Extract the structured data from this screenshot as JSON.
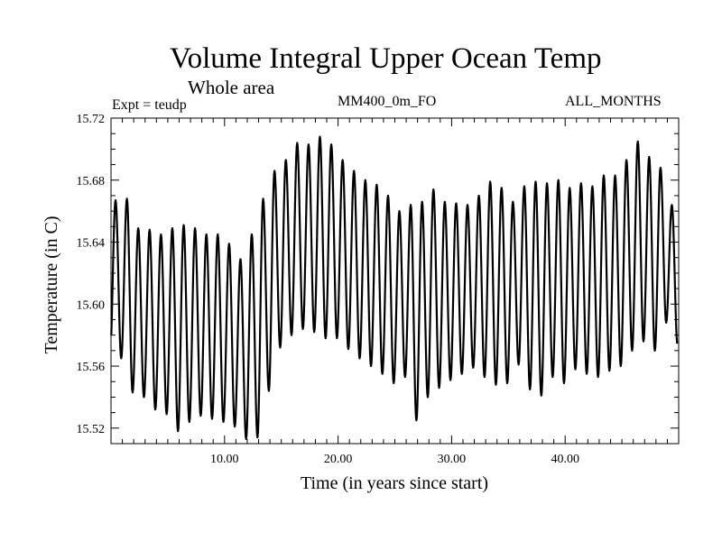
{
  "chart_data": {
    "type": "line",
    "title": "Volume Integral Upper Ocean Temp",
    "subtitle": "Whole area",
    "left_label": "Expt = teudp",
    "center_label": "MM400_0m_FO",
    "right_label": "ALL_MONTHS",
    "xlabel": "Time (in years since start)",
    "ylabel": "Temperature (in C)",
    "xlim": [
      0,
      50
    ],
    "ylim": [
      15.51,
      15.72
    ],
    "x_ticks": [
      10,
      20,
      30,
      40
    ],
    "x_tick_labels": [
      "10.00",
      "20.00",
      "30.00",
      "40.00"
    ],
    "y_ticks": [
      15.52,
      15.56,
      15.6,
      15.64,
      15.68,
      15.72
    ],
    "y_tick_labels": [
      "15.52",
      "15.56",
      "15.60",
      "15.64",
      "15.68",
      "15.72"
    ],
    "grid": false,
    "series_note": "annual cycle",
    "yearly_max": [
      15.667,
      15.668,
      15.649,
      15.648,
      15.645,
      15.649,
      15.651,
      15.649,
      15.645,
      15.645,
      15.639,
      15.629,
      15.645,
      15.668,
      15.686,
      15.693,
      15.704,
      15.703,
      15.708,
      15.703,
      15.693,
      15.686,
      15.68,
      15.677,
      15.67,
      15.66,
      15.664,
      15.666,
      15.674,
      15.666,
      15.665,
      15.664,
      15.67,
      15.679,
      15.675,
      15.666,
      15.676,
      15.679,
      15.678,
      15.68,
      15.675,
      15.678,
      15.676,
      15.683,
      15.683,
      15.693,
      15.705,
      15.695,
      15.688,
      15.664
    ],
    "yearly_min": [
      15.565,
      15.543,
      15.54,
      15.532,
      15.529,
      15.518,
      15.524,
      15.528,
      15.526,
      15.524,
      15.521,
      15.513,
      15.514,
      15.544,
      15.572,
      15.58,
      15.584,
      15.582,
      15.578,
      15.578,
      15.571,
      15.565,
      15.56,
      15.555,
      15.549,
      15.553,
      15.525,
      15.54,
      15.546,
      15.551,
      15.555,
      15.559,
      15.553,
      15.548,
      15.549,
      15.561,
      15.545,
      15.541,
      15.553,
      15.549,
      15.558,
      15.555,
      15.553,
      15.557,
      15.56,
      15.57,
      15.576,
      15.57,
      15.588,
      15.573
    ]
  }
}
